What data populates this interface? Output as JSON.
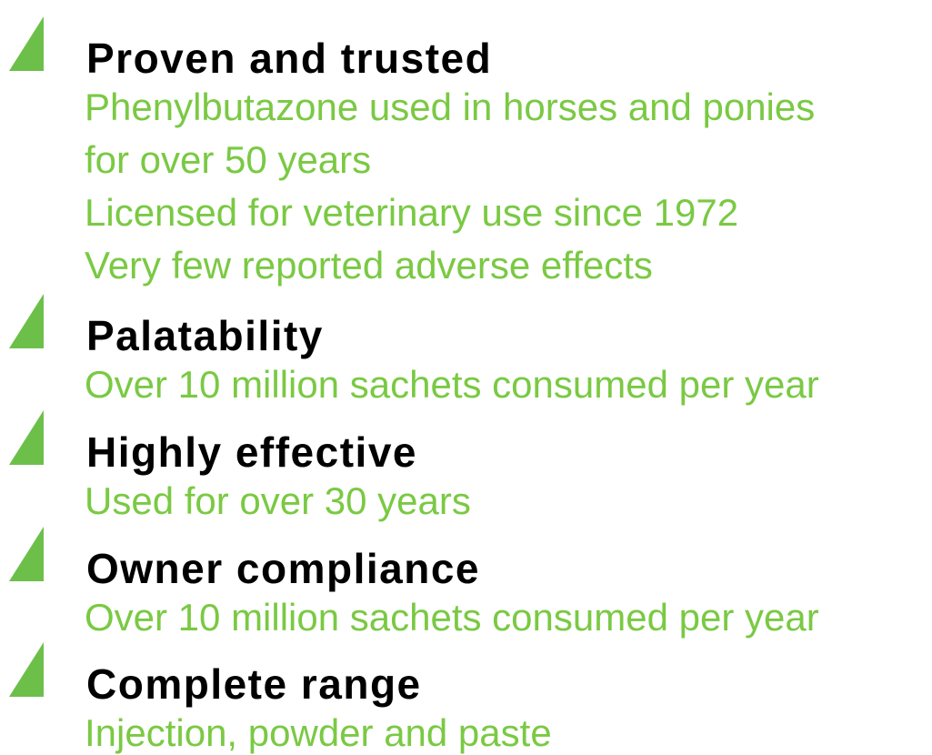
{
  "items": [
    {
      "heading": "Proven and trusted",
      "lines": [
        "Phenylbutazone used in horses and ponies",
        "for over 50 years",
        "Licensed for veterinary use since 1972",
        "Very few reported adverse effects"
      ]
    },
    {
      "heading": "Palatability",
      "lines": [
        "Over 10 million sachets consumed per year"
      ]
    },
    {
      "heading": "Highly effective",
      "lines": [
        "Used for over 30 years"
      ]
    },
    {
      "heading": "Owner compliance",
      "lines": [
        "Over 10 million sachets consumed per year"
      ]
    },
    {
      "heading": "Complete range",
      "lines": [
        "Injection, powder and paste"
      ]
    }
  ]
}
